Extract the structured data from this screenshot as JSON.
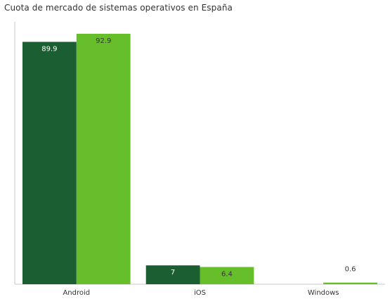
{
  "chart_data": {
    "type": "bar",
    "title": "Cuota de mercado de sistemas operativos en España",
    "categories": [
      "Android",
      "iOS",
      "Windows"
    ],
    "series": [
      {
        "values": [
          89.9,
          7,
          null
        ],
        "color": "#1a5e32",
        "label_color": "#ffffff"
      },
      {
        "values": [
          92.9,
          6.4,
          0.6
        ],
        "color": "#66bf2a",
        "label_color": "#333333"
      }
    ],
    "ylim": [
      0,
      92.9
    ],
    "grid": false,
    "legend": "none"
  }
}
